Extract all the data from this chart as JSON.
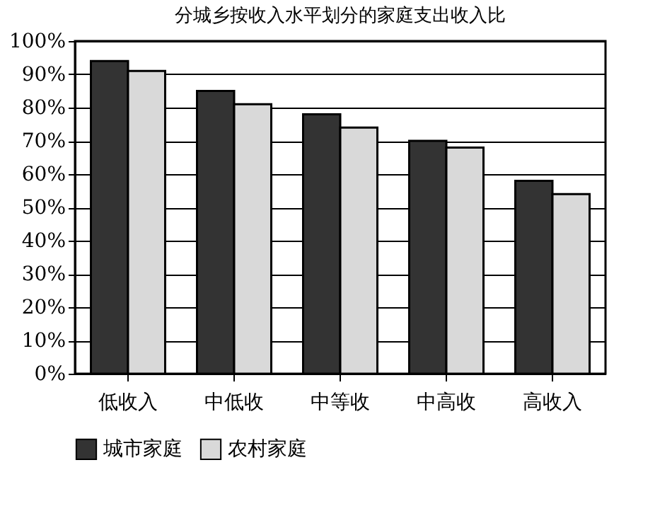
{
  "chart_data": {
    "type": "bar",
    "title": "分城乡按收入水平划分的家庭支出收入比",
    "categories": [
      "低收入",
      "中低收",
      "中等收",
      "中高收",
      "高收入"
    ],
    "series": [
      {
        "name": "城市家庭",
        "color": "#333333",
        "values": [
          94,
          85,
          78,
          70,
          58
        ]
      },
      {
        "name": "农村家庭",
        "color": "#d9d9d9",
        "values": [
          91,
          81,
          74,
          68,
          54
        ]
      }
    ],
    "ylim": [
      0,
      100
    ],
    "yticks": [
      {
        "value": 0,
        "label": "0%"
      },
      {
        "value": 10,
        "label": "10%"
      },
      {
        "value": 20,
        "label": "20%"
      },
      {
        "value": 30,
        "label": "30%"
      },
      {
        "value": 40,
        "label": "40%"
      },
      {
        "value": 50,
        "label": "50%"
      },
      {
        "value": 60,
        "label": "60%"
      },
      {
        "value": 70,
        "label": "70%"
      },
      {
        "value": 80,
        "label": "80%"
      },
      {
        "value": 90,
        "label": "90%"
      },
      {
        "value": 100,
        "label": "100%"
      }
    ],
    "grid": "y",
    "legend": "bottom"
  }
}
